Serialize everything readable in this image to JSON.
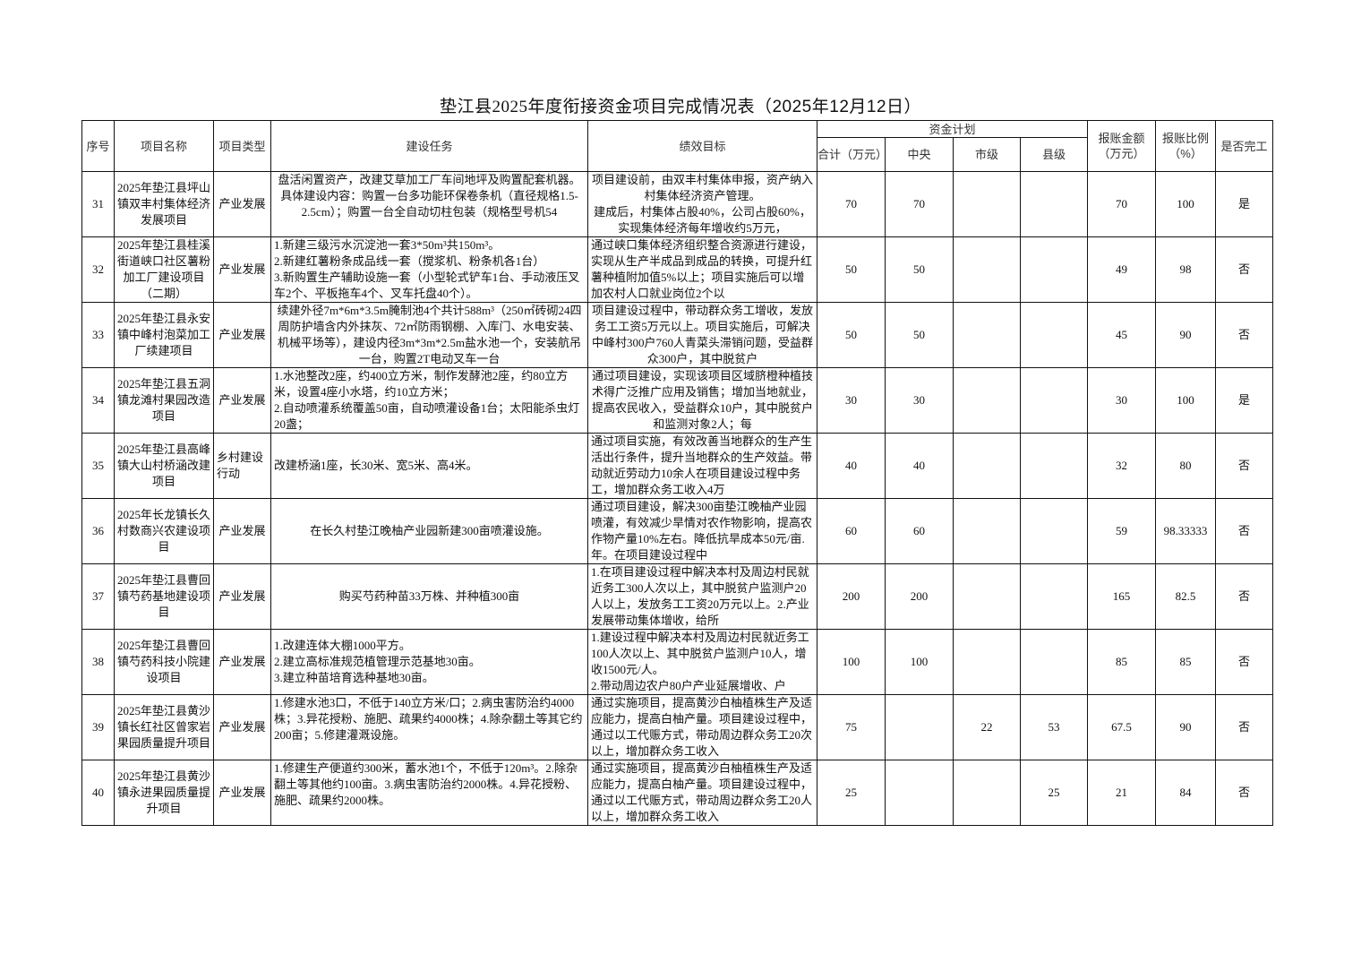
{
  "title": {
    "main": "垫江县2025年度衔接资金项目完成情况表",
    "date": "（2025年12月12日）"
  },
  "headers": {
    "seq": "序号",
    "name": "项目名称",
    "type": "项目类型",
    "task": "建设任务",
    "goal": "绩效目标",
    "fund_plan": "资金计划",
    "total": "合计（万元）",
    "central": "中央",
    "city": "市级",
    "county": "县级",
    "reimbursed": "报账金额（万元）",
    "ratio": "报账比例（%）",
    "completed": "是否完工"
  },
  "rows": [
    {
      "seq": "31",
      "name": "2025年垫江县坪山镇双丰村集体经济发展项目",
      "type": "产业发展",
      "task": "盘活闲置资产，改建艾草加工厂车间地坪及购置配套机器。\n具体建设内容：购置一台多功能环保卷条机（直径规格1.5-2.5cm）；购置一台全自动切柱包装（规格型号机54",
      "goal": "项目建设前，由双丰村集体申报，资产纳入村集体经济资产管理。\n建成后，村集体占股40%，公司占股60%，实现集体经济每年增收约5万元，",
      "total": "70",
      "central": "70",
      "city": "",
      "county": "",
      "reimbursed": "70",
      "ratio": "100",
      "completed": "是"
    },
    {
      "seq": "32",
      "name": "2025年垫江县桂溪街道峡口社区薯粉加工厂建设项目（二期）",
      "type": "产业发展",
      "task": "1.新建三级污水沉淀池一套3*50m³共150m³。\n2.新建红薯粉条成品线一套（搅浆机、粉条机各1台）\n3.新购置生产辅助设施一套（小型轮式铲车1台、手动液压叉车2个、平板拖车4个、叉车托盘40个）。",
      "goal": "通过峡口集体经济组织整合资源进行建设，实现从生产半成品到成品的转换，可提升红薯种植附加值5%以上；项目实施后可以增加农村人口就业岗位2个以",
      "total": "50",
      "central": "50",
      "city": "",
      "county": "",
      "reimbursed": "49",
      "ratio": "98",
      "completed": "否"
    },
    {
      "seq": "33",
      "name": "2025年垫江县永安镇中峰村泡菜加工厂续建项目",
      "type": "产业发展",
      "task": "续建外径7m*6m*3.5m腌制池4个共计588m³（250㎡砖砌24四周防护墙含内外抹灰、72㎡防雨钢棚、入库门、水电安装、机械平场等），建设内径3m*3m*2.5m盐水池一个，安装航吊一台，购置2T电动叉车一台",
      "goal": "项目建设过程中，带动群众务工增收，发放务工工资5万元以上。项目实施后，可解决中峰村300户760人青菜头滞销问题，受益群众300户，其中脱贫户",
      "total": "50",
      "central": "50",
      "city": "",
      "county": "",
      "reimbursed": "45",
      "ratio": "90",
      "completed": "否"
    },
    {
      "seq": "34",
      "name": "2025年垫江县五洞镇龙滩村果园改造项目",
      "type": "产业发展",
      "task": "1.水池整改2座，约400立方米，制作发酵池2座，约80立方米，设置4座小水塔，约10立方米；\n2.自动喷灌系统覆盖50亩，自动喷灌设备1台；太阳能杀虫灯20盏；",
      "goal": "通过项目建设，实现该项目区域脐橙种植技术得广泛推广应用及销售；增加当地就业，提高农民收入，受益群众10户，其中脱贫户和监测对象2人；每",
      "total": "30",
      "central": "30",
      "city": "",
      "county": "",
      "reimbursed": "30",
      "ratio": "100",
      "completed": "是"
    },
    {
      "seq": "35",
      "name": "2025年垫江县高峰镇大山村桥涵改建项目",
      "type": "乡村建设行动",
      "task": "改建桥涵1座，长30米、宽5米、高4米。",
      "goal": "通过项目实施，有效改善当地群众的生产生活出行条件，提升当地群众的生产效益。带动就近劳动力10余人在项目建设过程中务工，增加群众务工收入4万",
      "total": "40",
      "central": "40",
      "city": "",
      "county": "",
      "reimbursed": "32",
      "ratio": "80",
      "completed": "否"
    },
    {
      "seq": "36",
      "name": "2025年长龙镇长久村数商兴农建设项目",
      "type": "产业发展",
      "task": "在长久村垫江晚柚产业园新建300亩喷灌设施。",
      "goal": "通过项目建设，解决300亩垫江晚柚产业园喷灌，有效减少旱情对农作物影响，提高农作物产量10%左右。降低抗旱成本50元/亩.年。在项目建设过程中",
      "total": "60",
      "central": "60",
      "city": "",
      "county": "",
      "reimbursed": "59",
      "ratio": "98.33333",
      "completed": "否"
    },
    {
      "seq": "37",
      "name": "2025年垫江县曹回镇芍药基地建设项目",
      "type": "产业发展",
      "task": "购买芍药种苗33万株、并种植300亩",
      "goal": "1.在项目建设过程中解决本村及周边村民就近务工300人次以上，其中脱贫户监测户20人以上，发放务工工资20万元以上。2.产业发展带动集体增收，给所",
      "total": "200",
      "central": "200",
      "city": "",
      "county": "",
      "reimbursed": "165",
      "ratio": "82.5",
      "completed": "否"
    },
    {
      "seq": "38",
      "name": "2025年垫江县曹回镇芍药科技小院建设项目",
      "type": "产业发展",
      "task": "1.改建连体大棚1000平方。\n2.建立高标准规范植管理示范基地30亩。\n3.建立种苗培育选种基地30亩。",
      "goal": "1.建设过程中解决本村及周边村民就近务工100人次以上、其中脱贫户监测户10人，增收1500元/人。\n2.带动周边农户80户产业延展增收、户",
      "total": "100",
      "central": "100",
      "city": "",
      "county": "",
      "reimbursed": "85",
      "ratio": "85",
      "completed": "否"
    },
    {
      "seq": "39",
      "name": "2025年垫江县黄沙镇长红社区曾家岩果园质量提升项目",
      "type": "产业发展",
      "task": "1.修建水池3口，不低于140立方米/口；2.病虫害防治约4000株；3.异花授粉、施肥、疏果约4000株；4.除杂翻土等其它约200亩；5.修建灌溉设施。",
      "goal": "通过实施项目，提高黄沙白柚植株生产及适应能力，提高白柚产量。项目建设过程中，通过以工代赈方式，带动周边群众务工20次以上，增加群众务工收入",
      "total": "75",
      "central": "",
      "city": "22",
      "county": "53",
      "reimbursed": "67.5",
      "ratio": "90",
      "completed": "否"
    },
    {
      "seq": "40",
      "name": "2025年垫江县黄沙镇永进果园质量提升项目",
      "type": "产业发展",
      "task": "1.修建生产便道约300米，蓄水池1个，不低于120m³。2.除杂翻土等其他约100亩。3.病虫害防治约2000株。4.异花授粉、施肥、疏果约2000株。",
      "goal": "通过实施项目，提高黄沙白柚植株生产及适应能力，提高白柚产量。项目建设过程中，通过以工代赈方式，带动周边群众务工20人以上，增加群众务工收入",
      "total": "25",
      "central": "",
      "city": "",
      "county": "25",
      "reimbursed": "21",
      "ratio": "84",
      "completed": "否"
    }
  ]
}
